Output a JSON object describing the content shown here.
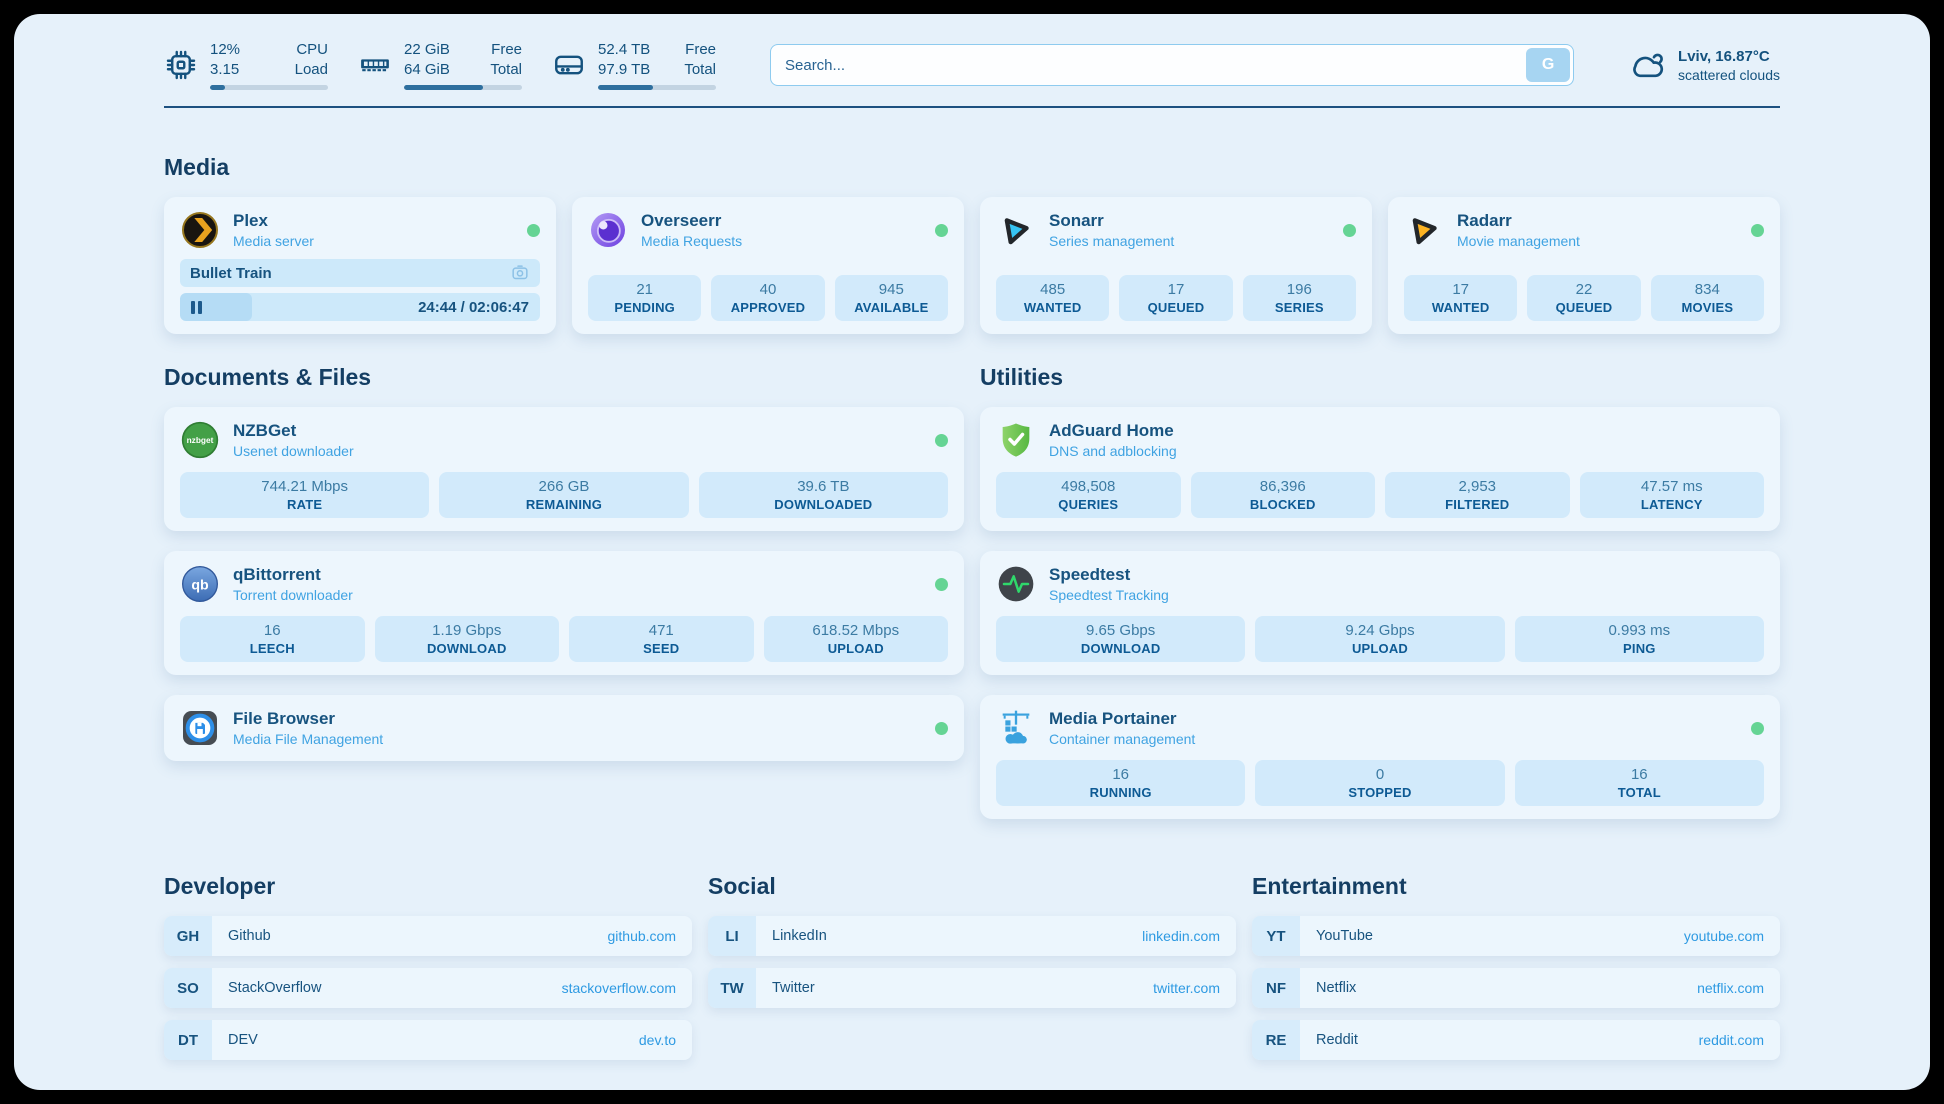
{
  "topbar": {
    "cpu": {
      "icon": "cpu-chip",
      "values": [
        "12%",
        "3.15"
      ],
      "labels": [
        "CPU",
        "Load"
      ],
      "progress_percent": 13
    },
    "ram": {
      "icon": "memory-stick",
      "values": [
        "22 GiB",
        "64 GiB"
      ],
      "labels": [
        "Free",
        "Total"
      ],
      "progress_percent": 67
    },
    "disk": {
      "icon": "hard-drive",
      "values": [
        "52.4 TB",
        "97.9 TB"
      ],
      "labels": [
        "Free",
        "Total"
      ],
      "progress_percent": 47
    },
    "search": {
      "placeholder": "Search...",
      "engine_button": "G"
    },
    "weather": {
      "icon": "cloud",
      "location_temperature": "Lviv, 16.87°C",
      "condition": "scattered clouds"
    }
  },
  "sections": {
    "media": {
      "title": "Media",
      "plex": {
        "icon": "plex-chevron",
        "name": "Plex",
        "subtitle": "Media server",
        "status": "online",
        "now_playing": "Bullet Train",
        "elapsed_total": "24:44 / 02:06:47",
        "progress_percent": 20
      },
      "overseerr": {
        "icon": "overseerr-eye",
        "name": "Overseerr",
        "subtitle": "Media Requests",
        "status": "online",
        "stats": [
          {
            "value": "21",
            "label": "PENDING"
          },
          {
            "value": "40",
            "label": "APPROVED"
          },
          {
            "value": "945",
            "label": "AVAILABLE"
          }
        ]
      },
      "sonarr": {
        "icon": "sonarr-play",
        "name": "Sonarr",
        "subtitle": "Series management",
        "status": "online",
        "stats": [
          {
            "value": "485",
            "label": "WANTED"
          },
          {
            "value": "17",
            "label": "QUEUED"
          },
          {
            "value": "196",
            "label": "SERIES"
          }
        ]
      },
      "radarr": {
        "icon": "radarr-play",
        "name": "Radarr",
        "subtitle": "Movie management",
        "status": "online",
        "stats": [
          {
            "value": "17",
            "label": "WANTED"
          },
          {
            "value": "22",
            "label": "QUEUED"
          },
          {
            "value": "834",
            "label": "MOVIES"
          }
        ]
      }
    },
    "documents": {
      "title": "Documents & Files",
      "nzbget": {
        "icon": "nzbget-circle",
        "icon_text": "nzbget",
        "name": "NZBGet",
        "subtitle": "Usenet downloader",
        "status": "online",
        "stats": [
          {
            "value": "744.21 Mbps",
            "label": "RATE"
          },
          {
            "value": "266 GB",
            "label": "REMAINING"
          },
          {
            "value": "39.6 TB",
            "label": "DOWNLOADED"
          }
        ]
      },
      "qbittorrent": {
        "icon": "qbittorrent-circle",
        "icon_text": "qb",
        "name": "qBittorrent",
        "subtitle": "Torrent downloader",
        "status": "online",
        "stats": [
          {
            "value": "16",
            "label": "LEECH"
          },
          {
            "value": "1.19 Gbps",
            "label": "DOWNLOAD"
          },
          {
            "value": "471",
            "label": "SEED"
          },
          {
            "value": "618.52 Mbps",
            "label": "UPLOAD"
          }
        ]
      },
      "filebrowser": {
        "icon": "filebrowser-floppy",
        "name": "File Browser",
        "subtitle": "Media File Management",
        "status": "online"
      }
    },
    "utilities": {
      "title": "Utilities",
      "adguard": {
        "icon": "adguard-shield",
        "name": "AdGuard Home",
        "subtitle": "DNS and adblocking",
        "stats": [
          {
            "value": "498,508",
            "label": "QUERIES"
          },
          {
            "value": "86,396",
            "label": "BLOCKED"
          },
          {
            "value": "2,953",
            "label": "FILTERED"
          },
          {
            "value": "47.57 ms",
            "label": "LATENCY"
          }
        ]
      },
      "speedtest": {
        "icon": "speedtest-pulse",
        "name": "Speedtest",
        "subtitle": "Speedtest Tracking",
        "stats": [
          {
            "value": "9.65 Gbps",
            "label": "DOWNLOAD"
          },
          {
            "value": "9.24 Gbps",
            "label": "UPLOAD"
          },
          {
            "value": "0.993 ms",
            "label": "PING"
          }
        ]
      },
      "portainer": {
        "icon": "portainer-crane",
        "name": "Media Portainer",
        "subtitle": "Container management",
        "status": "online",
        "stats": [
          {
            "value": "16",
            "label": "RUNNING"
          },
          {
            "value": "0",
            "label": "STOPPED"
          },
          {
            "value": "16",
            "label": "TOTAL"
          }
        ]
      }
    },
    "bookmarks": [
      {
        "title": "Developer",
        "links": [
          {
            "abbr": "GH",
            "name": "Github",
            "url": "github.com"
          },
          {
            "abbr": "SO",
            "name": "StackOverflow",
            "url": "stackoverflow.com"
          },
          {
            "abbr": "DT",
            "name": "DEV",
            "url": "dev.to"
          }
        ]
      },
      {
        "title": "Social",
        "links": [
          {
            "abbr": "LI",
            "name": "LinkedIn",
            "url": "linkedin.com"
          },
          {
            "abbr": "TW",
            "name": "Twitter",
            "url": "twitter.com"
          }
        ]
      },
      {
        "title": "Entertainment",
        "links": [
          {
            "abbr": "YT",
            "name": "YouTube",
            "url": "youtube.com"
          },
          {
            "abbr": "NF",
            "name": "Netflix",
            "url": "netflix.com"
          },
          {
            "abbr": "RE",
            "name": "Reddit",
            "url": "reddit.com"
          }
        ]
      }
    ]
  },
  "colors": {
    "status_online": "#65d494",
    "text_primary": "#17537f",
    "subtitle": "#40a3e2",
    "link": "#2e9ae2",
    "panel_bg": "#e6f1fa",
    "card_bg": "#edf6fd",
    "tile_bg": "#d2eafb"
  }
}
